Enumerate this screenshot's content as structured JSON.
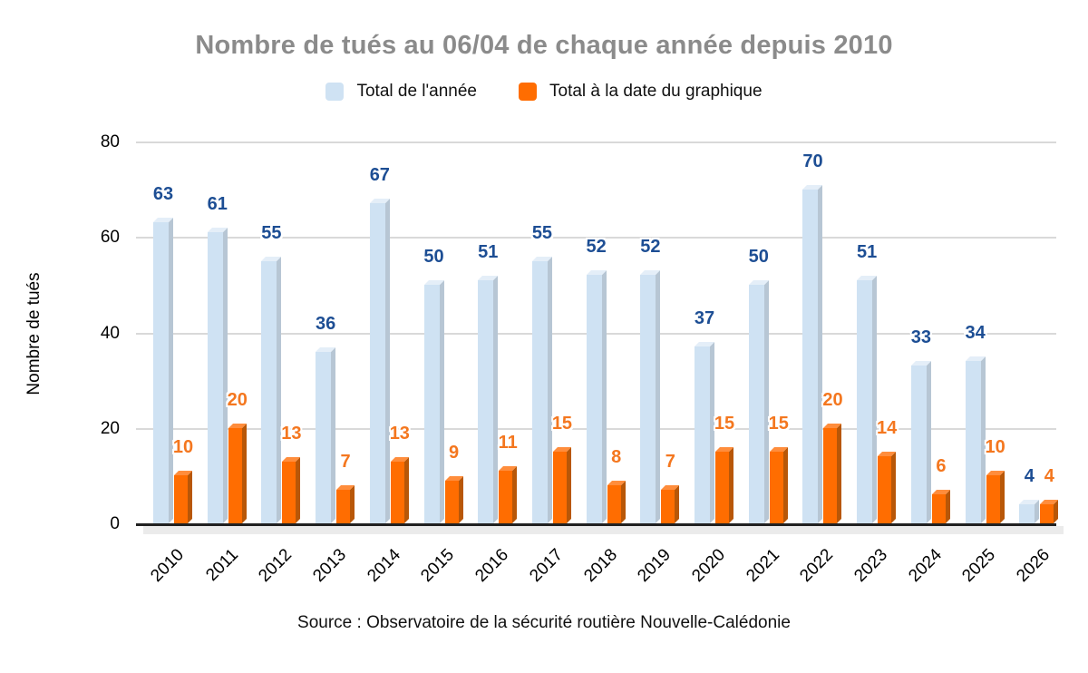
{
  "chart_data": {
    "type": "bar",
    "title": "Nombre de tués au 06/04 de chaque année depuis 2010",
    "title_color": "#8b8b8b",
    "categories": [
      "2010",
      "2011",
      "2012",
      "2013",
      "2014",
      "2015",
      "2016",
      "2017",
      "2018",
      "2019",
      "2020",
      "2021",
      "2022",
      "2023",
      "2024",
      "2025",
      "2026"
    ],
    "series": [
      {
        "name": "Total de l'année",
        "values": [
          63,
          61,
          55,
          36,
          67,
          50,
          51,
          55,
          52,
          52,
          37,
          50,
          70,
          51,
          33,
          34,
          4
        ],
        "color": "#cfe2f3",
        "side_color": "#b7c6d4",
        "top_color": "#e4eef8",
        "label_color": "#1d4e94"
      },
      {
        "name": "Total à la date du graphique",
        "values": [
          10,
          20,
          13,
          7,
          13,
          9,
          11,
          15,
          8,
          7,
          15,
          15,
          20,
          14,
          6,
          10,
          4
        ],
        "color": "#ff6d01",
        "side_color": "#b85708",
        "top_color": "#ff8d3c",
        "label_color": "#f4771f"
      }
    ],
    "xlabel": "",
    "ylabel": "Nombre de tués",
    "ylim": [
      0,
      80
    ],
    "yticks": [
      0,
      20,
      40,
      60,
      80
    ],
    "grid": true,
    "gridline_color": "#d9d9d9",
    "axis_color": "#212121",
    "legend_position": "top",
    "source": "Source : Observatoire de la sécurité routière Nouvelle-Calédonie"
  }
}
